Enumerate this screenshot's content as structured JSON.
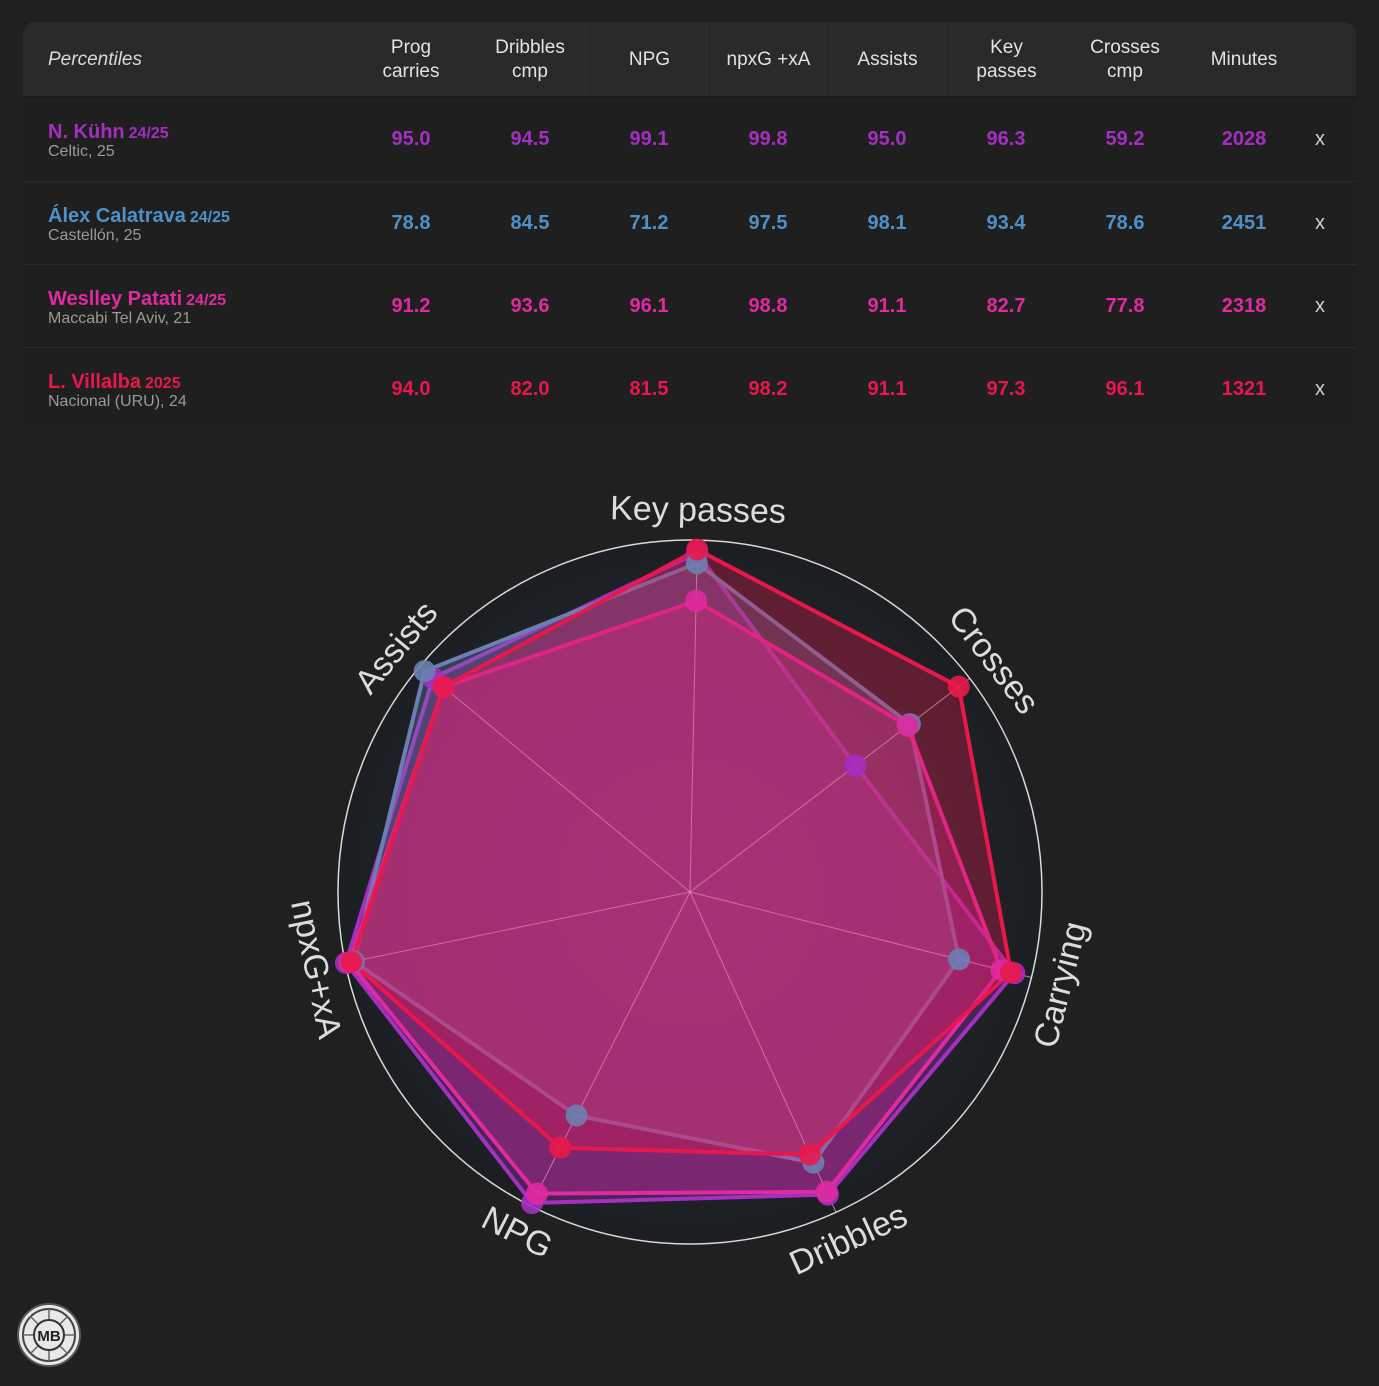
{
  "table": {
    "header_first": "Percentiles",
    "columns": [
      {
        "line1": "Prog",
        "line2": "carries"
      },
      {
        "line1": "Dribbles",
        "line2": "cmp"
      },
      {
        "line1": "NPG",
        "line2": ""
      },
      {
        "line1": "npxG +xA",
        "line2": ""
      },
      {
        "line1": "Assists",
        "line2": ""
      },
      {
        "line1": "Key",
        "line2": "passes"
      },
      {
        "line1": "Crosses",
        "line2": "cmp"
      },
      {
        "line1": "Minutes",
        "line2": ""
      }
    ],
    "remove_label": "x",
    "players": [
      {
        "name": "N. Kühn",
        "season": "24/25",
        "club": "Celtic, 25",
        "color": "#a42fc1",
        "values": [
          "95.0",
          "94.5",
          "99.1",
          "99.8",
          "95.0",
          "96.3",
          "59.2",
          "2028"
        ]
      },
      {
        "name": "Álex Calatrava",
        "season": "24/25",
        "club": "Castellón, 25",
        "color": "#4e90c8",
        "values": [
          "78.8",
          "84.5",
          "71.2",
          "97.5",
          "98.1",
          "93.4",
          "78.6",
          "2451"
        ]
      },
      {
        "name": "Weslley Patati",
        "season": "24/25",
        "club": "Maccabi Tel Aviv, 21",
        "color": "#e02aa0",
        "values": [
          "91.2",
          "93.6",
          "96.1",
          "98.8",
          "91.1",
          "82.7",
          "77.8",
          "2318"
        ]
      },
      {
        "name": "L. Villalba",
        "season": "2025",
        "club": "Nacional (URU), 24",
        "color": "#e8184c",
        "values": [
          "94.0",
          "82.0",
          "81.5",
          "98.2",
          "91.1",
          "97.3",
          "96.1",
          "1321"
        ]
      }
    ]
  },
  "chart_data": {
    "type": "radar",
    "axes": [
      "Key passes",
      "Crosses",
      "Carrying",
      "Dribbles",
      "NPG",
      "npxG+xA",
      "Assists"
    ],
    "range": [
      0,
      100
    ],
    "series": [
      {
        "name": "N. Kühn",
        "color": "#a42fc1",
        "values": [
          96.3,
          59.2,
          95.0,
          94.5,
          99.1,
          99.8,
          95.0
        ]
      },
      {
        "name": "Álex Calatrava",
        "color": "#6b7fb0",
        "values": [
          93.4,
          78.6,
          78.8,
          84.5,
          71.2,
          97.5,
          98.1
        ]
      },
      {
        "name": "Weslley Patati",
        "color": "#e02aa0",
        "values": [
          82.7,
          77.8,
          91.2,
          93.6,
          96.1,
          98.8,
          91.1
        ]
      },
      {
        "name": "L. Villalba",
        "color": "#e8184c",
        "values": [
          97.3,
          96.1,
          94.0,
          82.0,
          81.5,
          98.2,
          91.1
        ]
      }
    ]
  },
  "logo": {
    "text": "MB"
  }
}
